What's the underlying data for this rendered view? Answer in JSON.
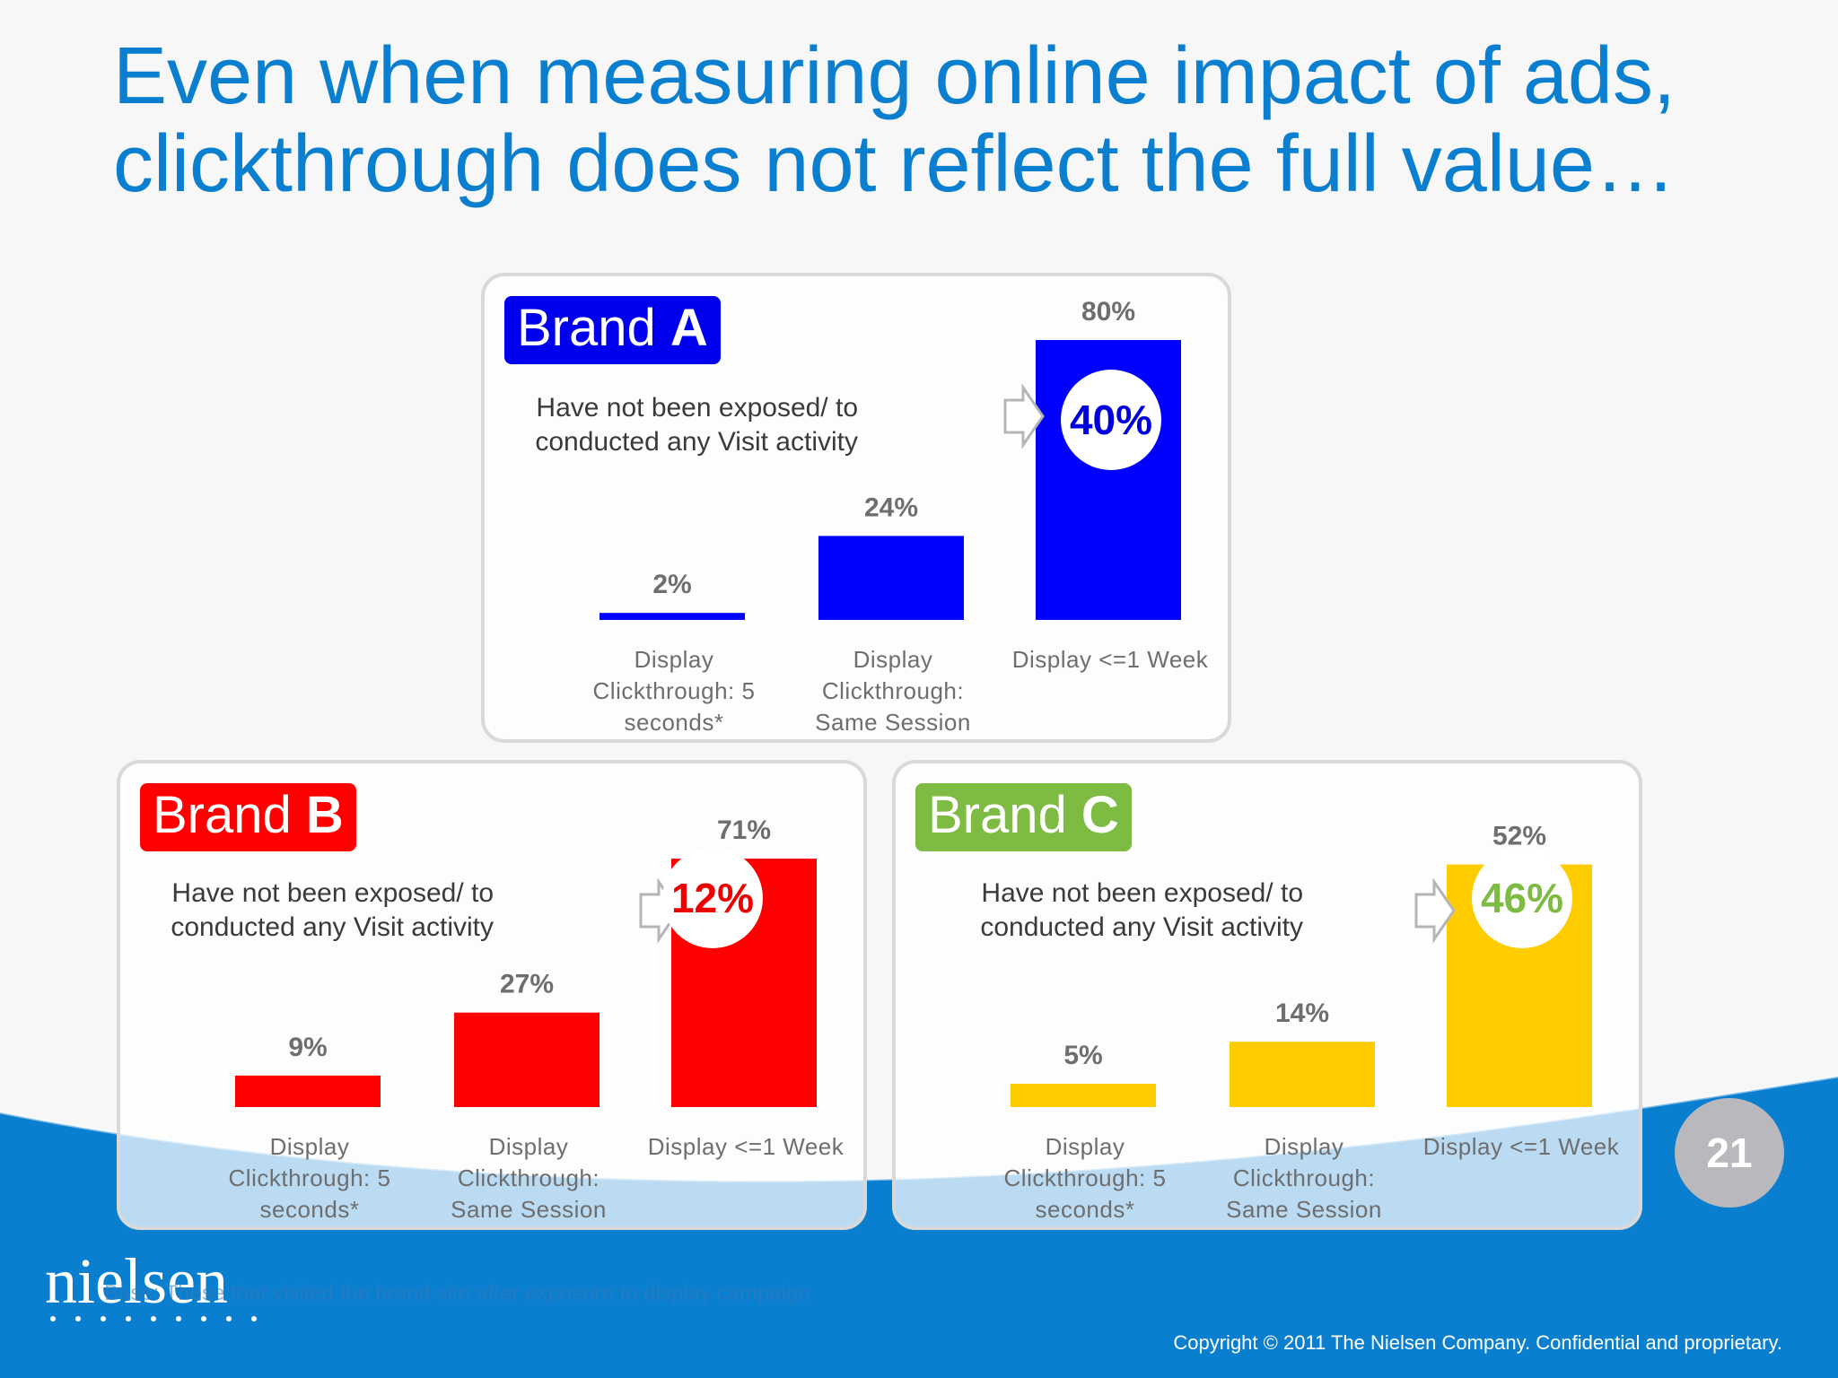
{
  "title": {
    "line1": "Even when measuring online impact of ads,",
    "line2": "clickthrough does not reflect the full value…"
  },
  "note_text": {
    "line1": "Have not been exposed/ to",
    "line2": "conducted any Visit activity"
  },
  "chart_data": [
    {
      "type": "bar",
      "brand_prefix": "Brand",
      "brand_letter": "A",
      "brand_color": "#0000ee",
      "bar_color": "#0000ff",
      "categories": [
        [
          "Display",
          "Clickthrough: 5",
          "seconds*"
        ],
        [
          "Display",
          "Clickthrough:",
          "Same Session"
        ],
        [
          "Display <=1 Week"
        ]
      ],
      "values": [
        2,
        24,
        80
      ],
      "value_labels": [
        "2%",
        "24%",
        "80%"
      ],
      "highlight": "40%",
      "highlight_color": "#0000dd",
      "ylim": [
        0,
        80
      ]
    },
    {
      "type": "bar",
      "brand_prefix": "Brand",
      "brand_letter": "B",
      "brand_color": "#ff0000",
      "bar_color": "#ff0000",
      "categories": [
        [
          "Display",
          "Clickthrough: 5",
          "seconds*"
        ],
        [
          "Display",
          "Clickthrough:",
          "Same Session"
        ],
        [
          "Display <=1 Week"
        ]
      ],
      "values": [
        9,
        27,
        71
      ],
      "value_labels": [
        "9%",
        "27%",
        "71%"
      ],
      "highlight": "12%",
      "highlight_color": "#ee0000",
      "ylim": [
        0,
        80
      ]
    },
    {
      "type": "bar",
      "brand_prefix": "Brand",
      "brand_letter": "C",
      "brand_color": "#7dbb42",
      "bar_color": "#ffcc00",
      "categories": [
        [
          "Display",
          "Clickthrough: 5",
          "seconds*"
        ],
        [
          "Display",
          "Clickthrough:",
          "Same Session"
        ],
        [
          "Display <=1 Week"
        ]
      ],
      "values": [
        5,
        14,
        52
      ],
      "value_labels": [
        "5%",
        "14%",
        "52%"
      ],
      "highlight": "46%",
      "highlight_color": "#7dbb42",
      "ylim": [
        0,
        60
      ]
    }
  ],
  "footer": {
    "page_number": "21",
    "logo": "nielsen",
    "base_note": "Base: Those that visited the brand site after exposure to display campaign",
    "copyright": "Copyright © 2011 The Nielsen Company. Confidential and proprietary."
  },
  "colors": {
    "title": "#0a7fd0",
    "wave": "#0a7fd0",
    "value_label": "#6e6e6e",
    "axis_label": "#6e6e6e"
  }
}
